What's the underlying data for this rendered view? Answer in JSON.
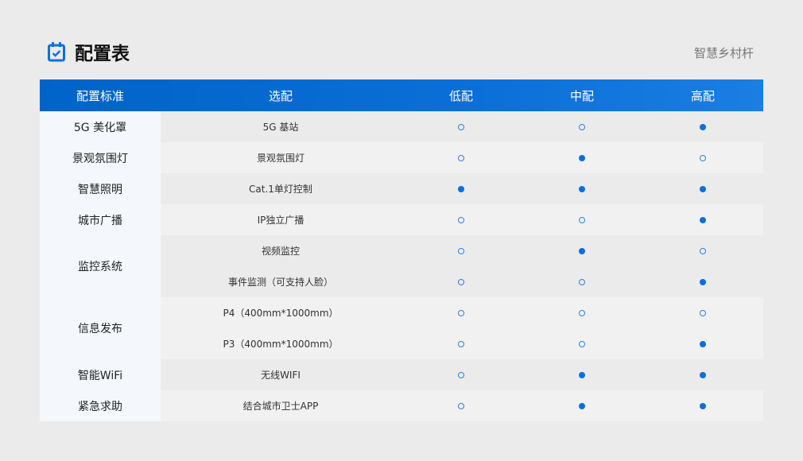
{
  "header": {
    "title": "配置表",
    "brand": "智慧乡村杆",
    "icon": "calendar-check-icon",
    "accent": "#0a6fe0"
  },
  "table": {
    "columns": [
      "配置标准",
      "选配",
      "低配",
      "中配",
      "高配"
    ],
    "groups": [
      {
        "category": "5G 美化罩",
        "rows": [
          {
            "option": "5G 基站",
            "levels": [
              false,
              false,
              true
            ]
          }
        ]
      },
      {
        "category": "景观氛围灯",
        "rows": [
          {
            "option": "景观氛围灯",
            "levels": [
              false,
              true,
              false
            ]
          }
        ]
      },
      {
        "category": "智慧照明",
        "rows": [
          {
            "option": "Cat.1单灯控制",
            "levels": [
              true,
              true,
              true
            ]
          }
        ]
      },
      {
        "category": "城市广播",
        "rows": [
          {
            "option": "IP独立广播",
            "levels": [
              false,
              false,
              true
            ]
          }
        ]
      },
      {
        "category": "监控系统",
        "rows": [
          {
            "option": "视频监控",
            "levels": [
              false,
              true,
              false
            ]
          },
          {
            "option": "事件监测（可支持人脸）",
            "levels": [
              false,
              false,
              true
            ]
          }
        ]
      },
      {
        "category": "信息发布",
        "rows": [
          {
            "option": "P4（400mm*1000mm）",
            "levels": [
              false,
              false,
              false
            ]
          },
          {
            "option": "P3（400mm*1000mm）",
            "levels": [
              false,
              false,
              true
            ]
          }
        ]
      },
      {
        "category": "智能WiFi",
        "rows": [
          {
            "option": "无线WIFI",
            "levels": [
              false,
              true,
              true
            ]
          }
        ]
      },
      {
        "category": "紧急求助",
        "rows": [
          {
            "option": "结合城市卫士APP",
            "levels": [
              false,
              true,
              true
            ]
          }
        ]
      }
    ]
  }
}
